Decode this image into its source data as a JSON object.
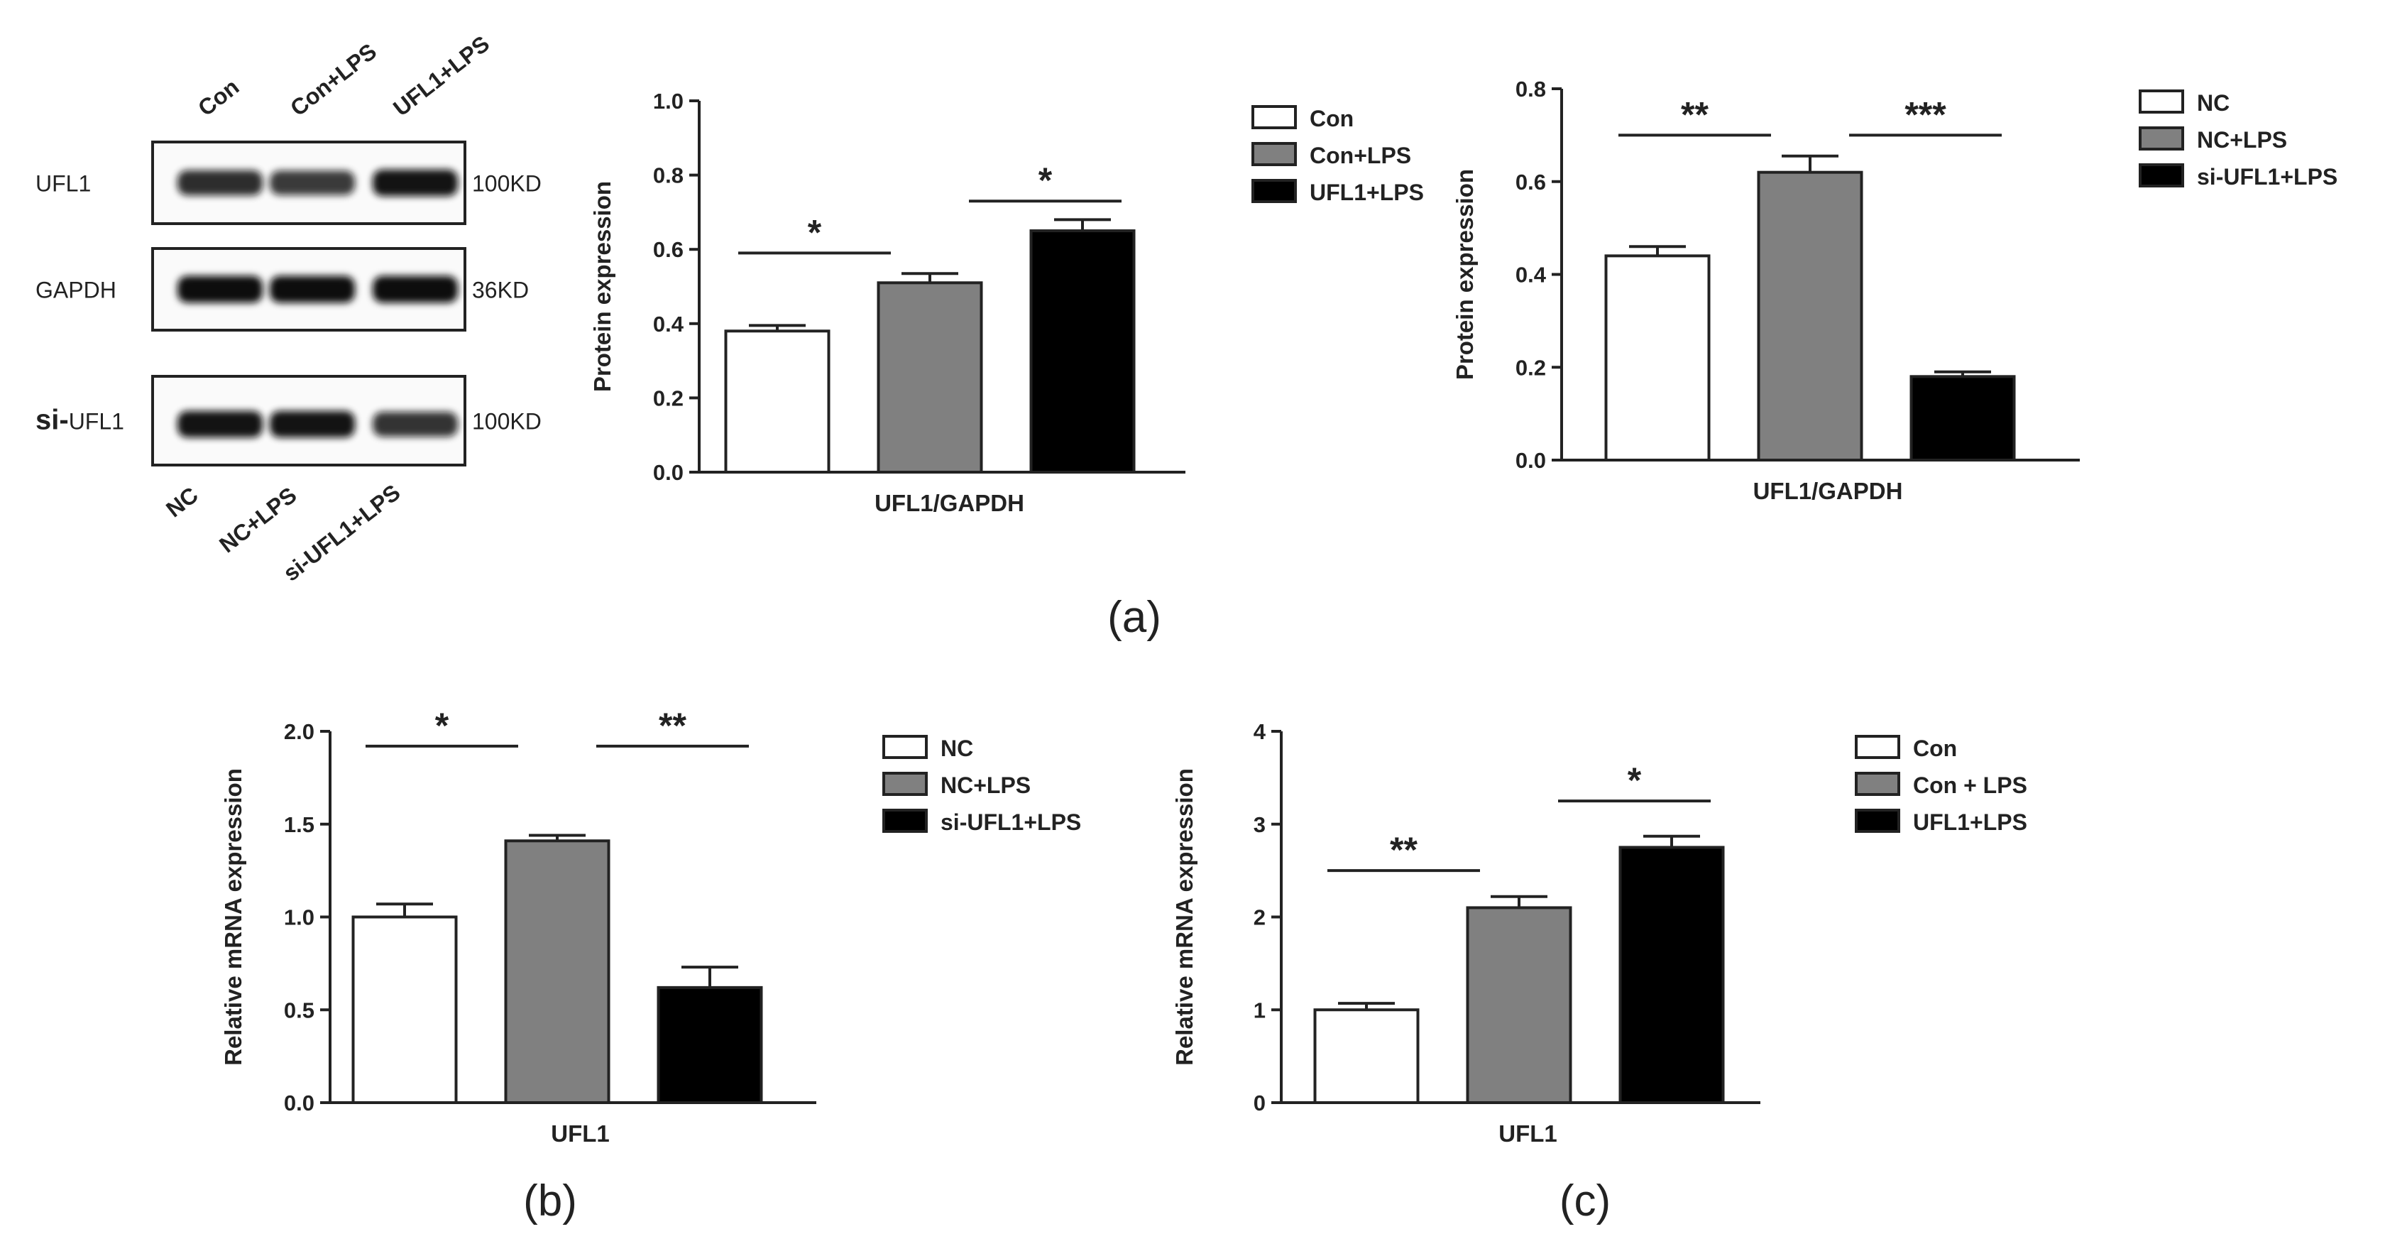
{
  "figure_labels": {
    "a": "(a)",
    "b": "(b)",
    "c": "(c)"
  },
  "western_blot": {
    "top_lanes": [
      "Con",
      "Con+LPS",
      "UFL1+LPS"
    ],
    "rows": [
      {
        "label": "UFL1",
        "size": "100KD",
        "intensity": [
          0.75,
          0.65,
          0.95
        ]
      },
      {
        "label": "GAPDH",
        "size": "36KD",
        "intensity": [
          1.0,
          1.0,
          1.0
        ]
      },
      {
        "label_prefix": "si-",
        "label": "UFL1",
        "size": "100KD",
        "intensity": [
          0.95,
          0.95,
          0.7
        ]
      }
    ],
    "bottom_lanes": [
      "NC",
      "NC+LPS",
      "si-UFL1+LPS"
    ]
  },
  "chart_data": [
    {
      "id": "a1",
      "type": "bar",
      "title": "",
      "categories": [
        "UFL1/GAPDH"
      ],
      "xlabel": "UFL1/GAPDH",
      "ylabel": "Protein expression",
      "ylim": [
        0,
        1.0
      ],
      "yticks": [
        "0.0",
        "0.2",
        "0.4",
        "0.6",
        "0.8",
        "1.0"
      ],
      "series": [
        {
          "name": "Con",
          "value": 0.38,
          "error": 0.015,
          "color": "#ffffff"
        },
        {
          "name": "Con+LPS",
          "value": 0.51,
          "error": 0.025,
          "color": "#808080"
        },
        {
          "name": "UFL1+LPS",
          "value": 0.65,
          "error": 0.03,
          "color": "#000000"
        }
      ],
      "significance": [
        {
          "from": 0,
          "to": 1,
          "y": 0.59,
          "label": "*"
        },
        {
          "from": 1,
          "to": 2,
          "y": 0.73,
          "label": "*"
        }
      ],
      "legend": "right"
    },
    {
      "id": "a2",
      "type": "bar",
      "title": "",
      "categories": [
        "UFL1/GAPDH"
      ],
      "xlabel": "UFL1/GAPDH",
      "ylabel": "Protein expression",
      "ylim": [
        0,
        0.8
      ],
      "yticks": [
        "0.0",
        "0.2",
        "0.4",
        "0.6",
        "0.8"
      ],
      "series": [
        {
          "name": "NC",
          "value": 0.44,
          "error": 0.02,
          "color": "#ffffff"
        },
        {
          "name": "NC+LPS",
          "value": 0.62,
          "error": 0.035,
          "color": "#808080"
        },
        {
          "name": "si-UFL1+LPS",
          "value": 0.18,
          "error": 0.01,
          "color": "#000000"
        }
      ],
      "significance": [
        {
          "from": 0,
          "to": 1,
          "y": 0.7,
          "label": "**"
        },
        {
          "from": 1,
          "to": 2,
          "y": 0.7,
          "label": "***"
        }
      ],
      "legend": "right"
    },
    {
      "id": "b",
      "type": "bar",
      "title": "",
      "categories": [
        "UFL1"
      ],
      "xlabel": "UFL1",
      "ylabel": "Relative mRNA expression",
      "ylim": [
        0,
        2.0
      ],
      "yticks": [
        "0.0",
        "0.5",
        "1.0",
        "1.5",
        "2.0"
      ],
      "series": [
        {
          "name": "NC",
          "value": 1.0,
          "error": 0.07,
          "color": "#ffffff"
        },
        {
          "name": "NC+LPS",
          "value": 1.41,
          "error": 0.03,
          "color": "#808080"
        },
        {
          "name": "si-UFL1+LPS",
          "value": 0.62,
          "error": 0.11,
          "color": "#000000"
        }
      ],
      "significance": [
        {
          "from": 0,
          "to": 1,
          "y": 1.92,
          "label": "*"
        },
        {
          "from": 1,
          "to": 2,
          "y": 1.92,
          "label": "**"
        }
      ],
      "legend": "right"
    },
    {
      "id": "c",
      "type": "bar",
      "title": "",
      "categories": [
        "UFL1"
      ],
      "xlabel": "UFL1",
      "ylabel": "Relative mRNA expression",
      "ylim": [
        0,
        4
      ],
      "yticks": [
        "0",
        "1",
        "2",
        "3",
        "4"
      ],
      "series": [
        {
          "name": "Con",
          "value": 1.0,
          "error": 0.07,
          "color": "#ffffff"
        },
        {
          "name": "Con + LPS",
          "value": 2.1,
          "error": 0.12,
          "color": "#808080"
        },
        {
          "name": "UFL1+LPS",
          "value": 2.75,
          "error": 0.12,
          "color": "#000000"
        }
      ],
      "significance": [
        {
          "from": 0,
          "to": 1,
          "y": 2.5,
          "label": "**"
        },
        {
          "from": 1,
          "to": 2,
          "y": 3.25,
          "label": "*"
        }
      ],
      "legend": "right"
    }
  ]
}
